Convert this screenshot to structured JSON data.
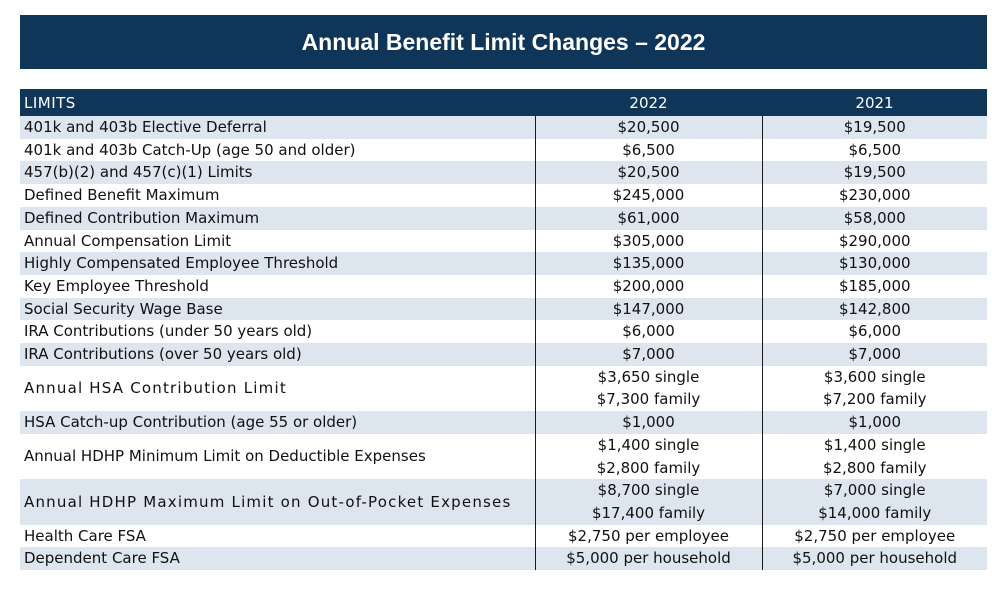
{
  "title": "Annual Benefit Limit Changes – 2022",
  "colors": {
    "header_bg": "#0f3558",
    "stripe": "#dde5ef",
    "text": "#111111"
  },
  "table": {
    "headers": {
      "limits": "LIMITS",
      "col1": "2022",
      "col2": "2021"
    },
    "rows": [
      {
        "label": "401k and 403b Elective Deferral",
        "y2022": "$20,500",
        "y2021": "$19,500"
      },
      {
        "label": "401k and 403b Catch-Up (age 50 and older)",
        "y2022": "$6,500",
        "y2021": "$6,500"
      },
      {
        "label": "457(b)(2) and 457(c)(1) Limits",
        "y2022": "$20,500",
        "y2021": "$19,500"
      },
      {
        "label": "Defined Benefit Maximum",
        "y2022": "$245,000",
        "y2021": "$230,000"
      },
      {
        "label": "Defined Contribution Maximum",
        "y2022": "$61,000",
        "y2021": "$58,000"
      },
      {
        "label": "Annual Compensation Limit",
        "y2022": "$305,000",
        "y2021": "$290,000"
      },
      {
        "label": "Highly Compensated Employee Threshold",
        "y2022": "$135,000",
        "y2021": "$130,000"
      },
      {
        "label": "Key Employee Threshold",
        "y2022": "$200,000",
        "y2021": "$185,000"
      },
      {
        "label": "Social Security Wage Base",
        "y2022": "$147,000",
        "y2021": "$142,800"
      },
      {
        "label": "IRA Contributions (under 50 years old)",
        "y2022": "$6,000",
        "y2021": "$6,000"
      },
      {
        "label": "IRA Contributions (over 50 years old)",
        "y2022": "$7,000",
        "y2021": "$7,000"
      },
      {
        "label": "Annual HSA Contribution Limit",
        "y2022": "$3,650 single",
        "y2022b": "$7,300 family",
        "y2021": "$3,600 single",
        "y2021b": "$7,200 family"
      },
      {
        "label": "HSA Catch-up Contribution (age 55 or older)",
        "y2022": "$1,000",
        "y2021": "$1,000"
      },
      {
        "label": "Annual HDHP Minimum Limit on Deductible Expenses",
        "y2022": "$1,400 single",
        "y2022b": "$2,800 family",
        "y2021": "$1,400 single",
        "y2021b": "$2,800 family"
      },
      {
        "label": "Annual HDHP Maximum Limit on Out-of-Pocket Expenses",
        "y2022": "$8,700 single",
        "y2022b": "$17,400 family",
        "y2021": "$7,000 single",
        "y2021b": "$14,000 family"
      },
      {
        "label": "Health Care FSA",
        "y2022": "$2,750 per employee",
        "y2021": "$2,750 per employee"
      },
      {
        "label": "Dependent Care FSA",
        "y2022": "$5,000 per household",
        "y2021": "$5,000 per household"
      }
    ]
  }
}
